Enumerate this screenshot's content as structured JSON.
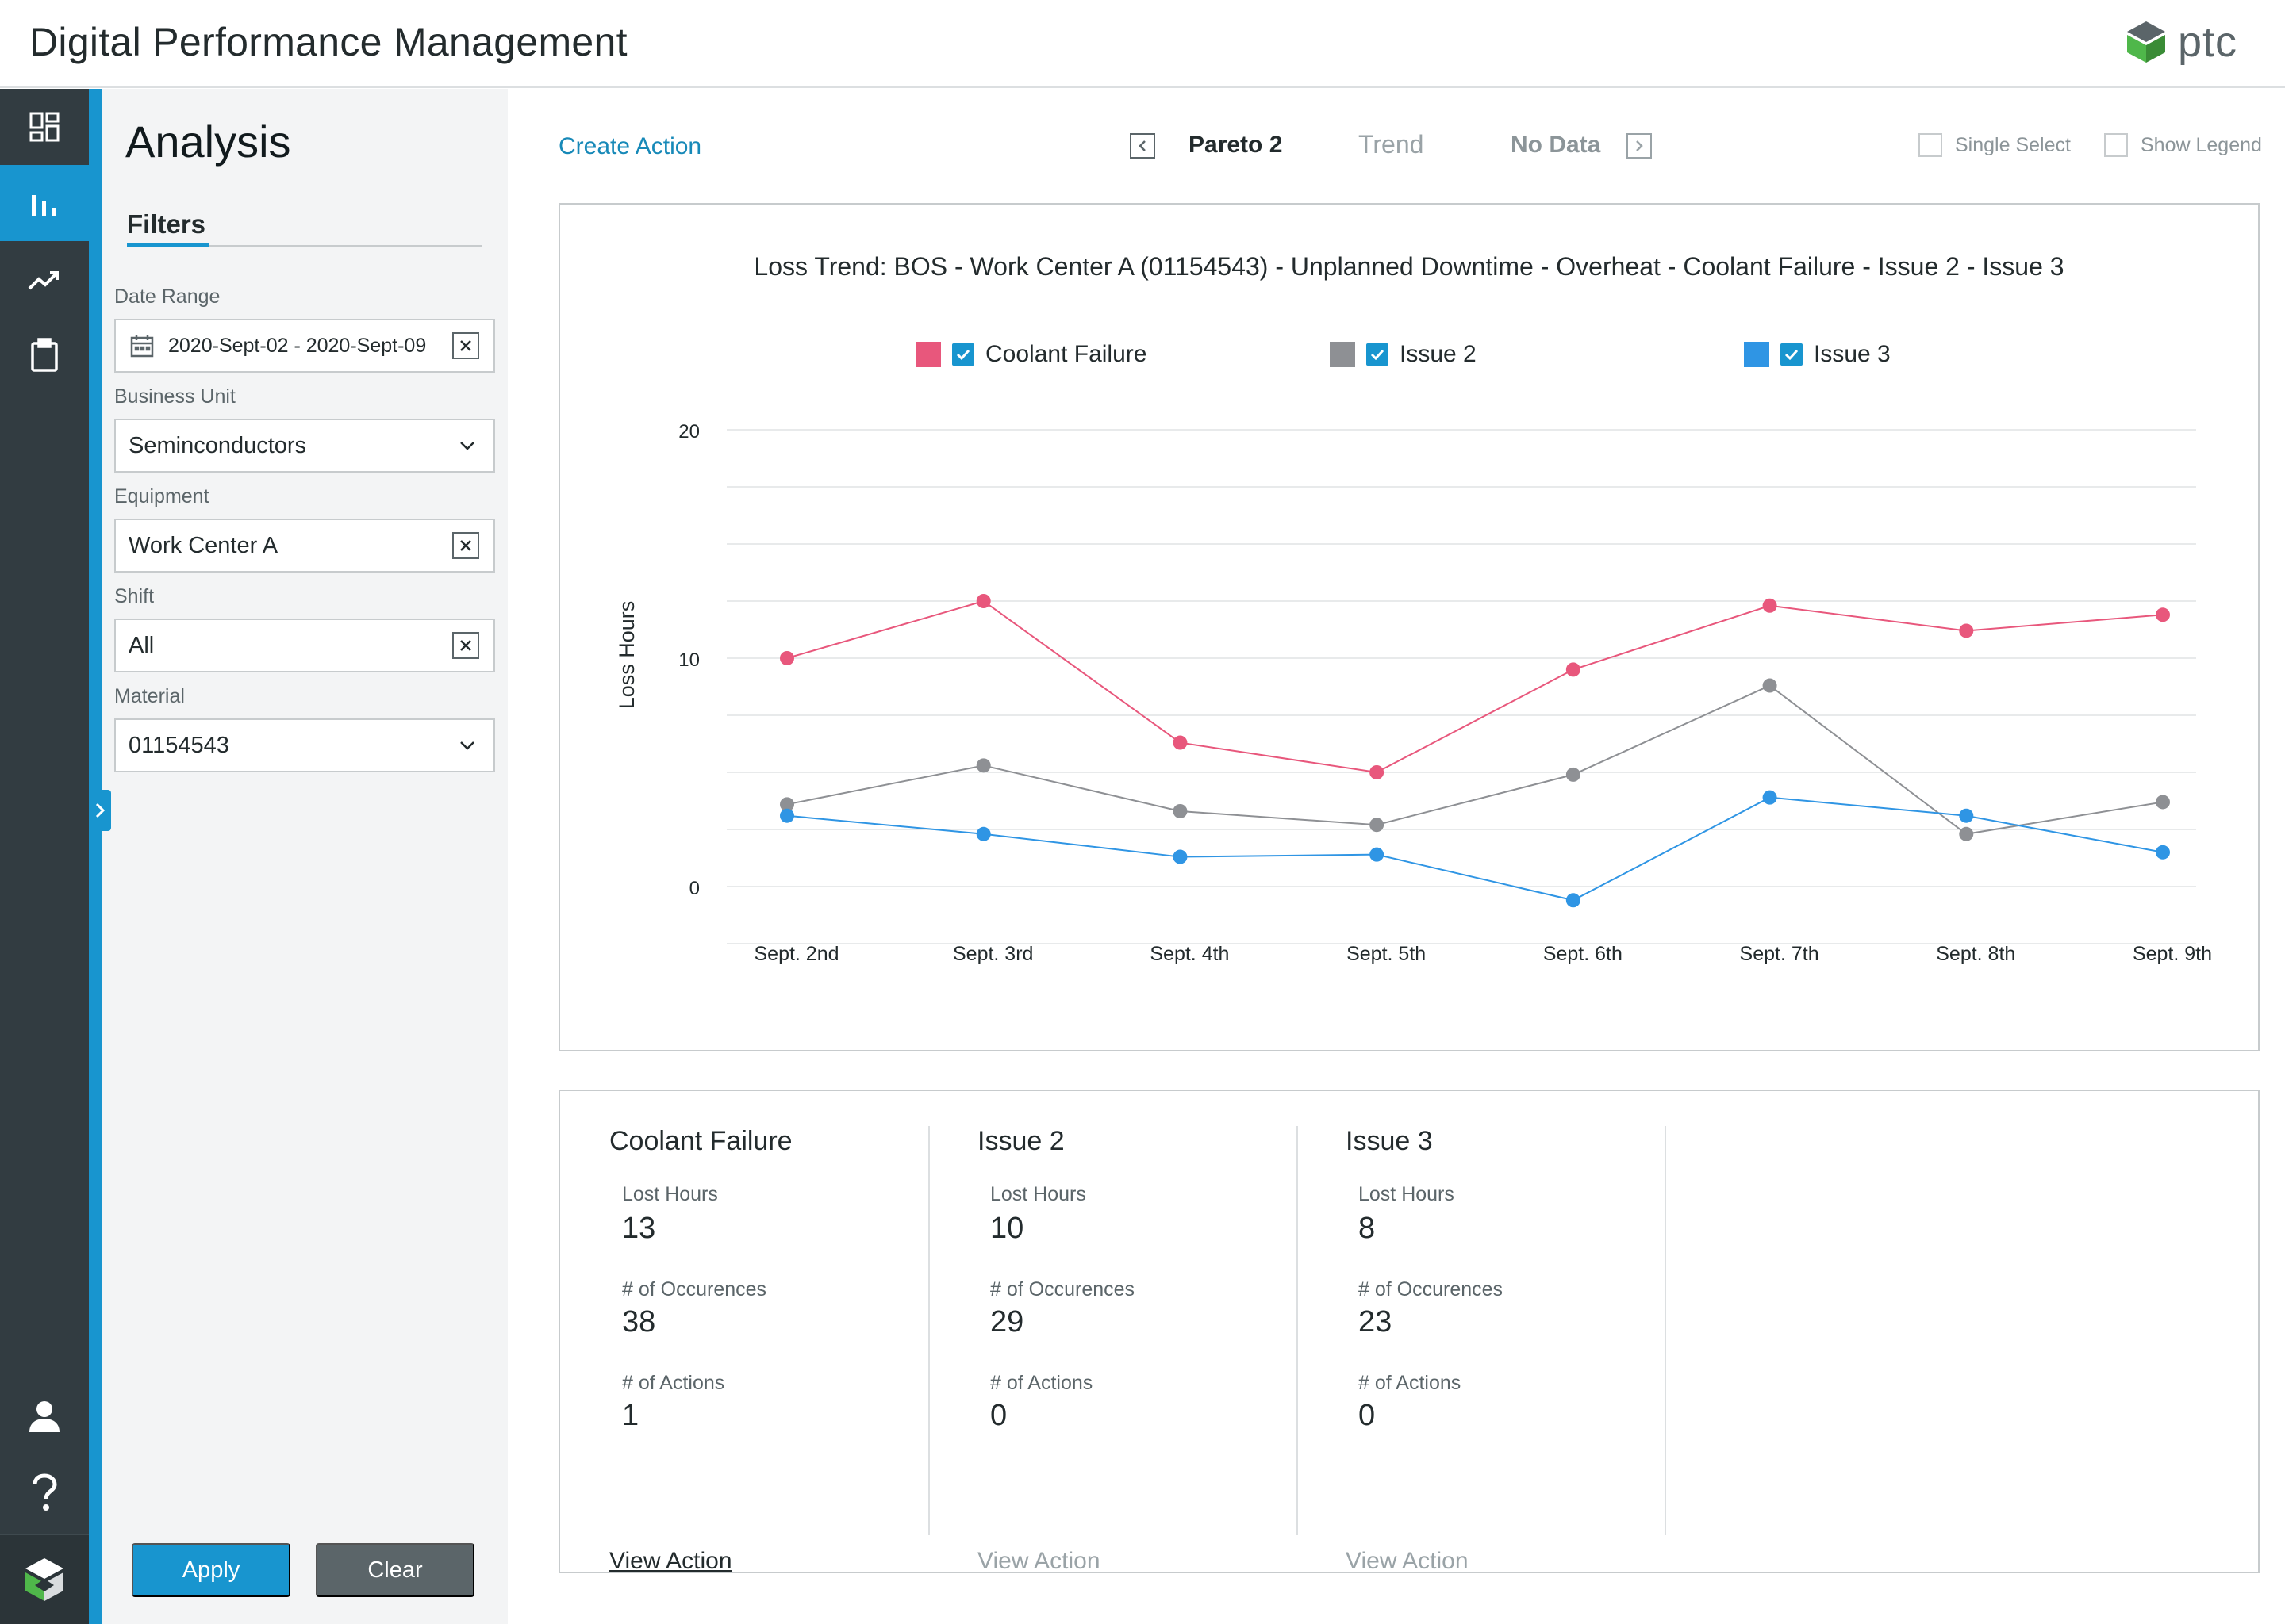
{
  "app": {
    "title": "Digital Performance Management",
    "brand": "ptc"
  },
  "nav": {
    "items": [
      {
        "icon": "dashboard-icon"
      },
      {
        "icon": "bar-chart-icon",
        "active": true
      },
      {
        "icon": "trend-icon"
      },
      {
        "icon": "clipboard-icon"
      }
    ],
    "bottom": [
      {
        "icon": "user-icon"
      },
      {
        "icon": "help-icon"
      },
      {
        "icon": "ptc-logo-icon"
      }
    ]
  },
  "panel": {
    "title": "Analysis",
    "tab": "Filters",
    "fields": {
      "date_range": {
        "label": "Date Range",
        "value": "2020-Sept-02 - 2020-Sept-09"
      },
      "business_unit": {
        "label": "Business Unit",
        "value": "Seminconductors"
      },
      "equipment": {
        "label": "Equipment",
        "value": "Work Center A"
      },
      "shift": {
        "label": "Shift",
        "value": "All"
      },
      "material": {
        "label": "Material",
        "value": "01154543"
      }
    },
    "apply_label": "Apply",
    "clear_label": "Clear"
  },
  "toolbar": {
    "create_action": "Create Action",
    "tabs": [
      "Pareto 2",
      "Trend",
      "No Data"
    ],
    "single_select": "Single Select",
    "show_legend": "Show Legend"
  },
  "colors": {
    "accent": "#1895cf",
    "coolant": "#e8577c",
    "issue2": "#8e9094",
    "issue3": "#2f95e4"
  },
  "chart_data": {
    "type": "line",
    "title": "Loss Trend: BOS - Work Center A (01154543) - Unplanned Downtime - Overheat - Coolant Failure - Issue 2 - Issue 3",
    "ylabel": "Loss Hours",
    "xlabel": "",
    "ylim": [
      0,
      20
    ],
    "yticks": [
      "20",
      "10",
      "0"
    ],
    "grid": true,
    "legend": "top",
    "categories": [
      "Sept. 2nd",
      "Sept. 3rd",
      "Sept. 4th",
      "Sept. 5th",
      "Sept. 6th",
      "Sept. 7th",
      "Sept. 8th",
      "Sept. 9th"
    ],
    "series": [
      {
        "name": "Coolant Failure",
        "color": "#e8577c",
        "values": [
          10.0,
          12.5,
          6.3,
          5.0,
          9.5,
          12.3,
          11.2,
          11.9
        ]
      },
      {
        "name": "Issue 2",
        "color": "#8e9094",
        "values": [
          3.6,
          5.3,
          3.3,
          2.7,
          4.9,
          8.8,
          2.3,
          3.7
        ]
      },
      {
        "name": "Issue 3",
        "color": "#2f95e4",
        "values": [
          3.1,
          2.3,
          1.3,
          1.4,
          -0.6,
          3.9,
          3.1,
          1.5
        ]
      }
    ]
  },
  "summary": [
    {
      "title": "Coolant Failure",
      "lost_hours_label": "Lost Hours",
      "lost_hours": "13",
      "occurrences_label": "# of Occurences",
      "occurrences": "38",
      "actions_label": "# of Actions",
      "actions": "1",
      "link": "View Action",
      "link_enabled": true
    },
    {
      "title": "Issue 2",
      "lost_hours_label": "Lost Hours",
      "lost_hours": "10",
      "occurrences_label": "# of Occurences",
      "occurrences": "29",
      "actions_label": "# of Actions",
      "actions": "0",
      "link": "View Action",
      "link_enabled": false
    },
    {
      "title": "Issue 3",
      "lost_hours_label": "Lost Hours",
      "lost_hours": "8",
      "occurrences_label": "# of Occurences",
      "occurrences": "23",
      "actions_label": "# of Actions",
      "actions": "0",
      "link": "View Action",
      "link_enabled": false
    }
  ]
}
